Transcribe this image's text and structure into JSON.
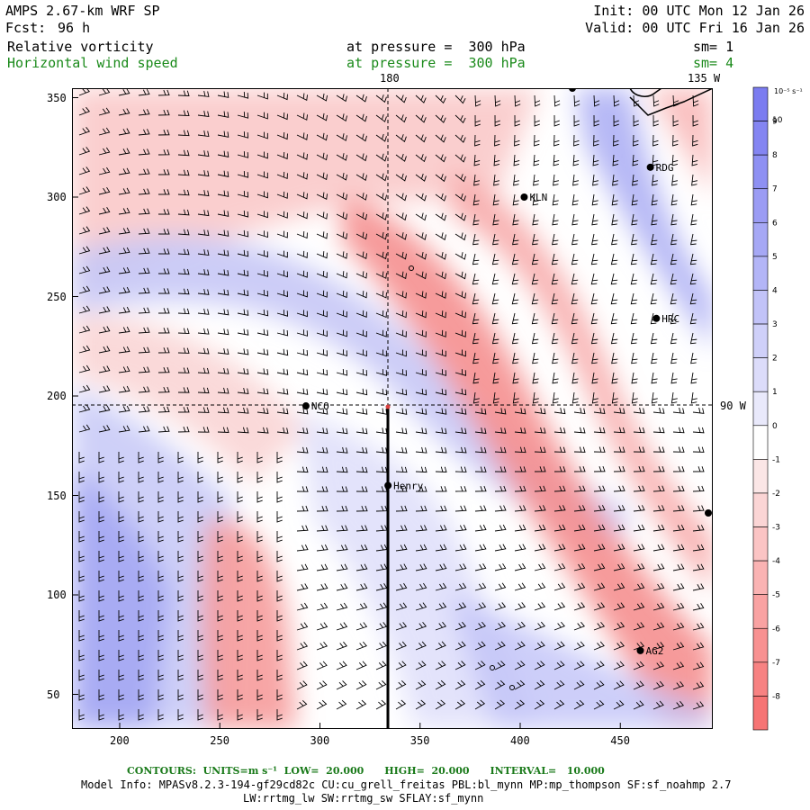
{
  "header": {
    "model": "AMPS 2.67-km WRF SP",
    "fcst_label": "Fcst:",
    "fcst_value": "96 h",
    "init": "Init: 00 UTC Mon 12 Jan 26",
    "valid": "Valid: 00 UTC Fri 16 Jan 26",
    "field1": "Relative vorticity",
    "field1_pressure": "at pressure =  300 hPa",
    "field1_sm": "sm= 1",
    "field2": "Horizontal wind speed",
    "field2_pressure": "at pressure =  300 hPa",
    "field2_sm": "sm= 4"
  },
  "map": {
    "x_ticks": [
      "200",
      "250",
      "300",
      "350",
      "400",
      "450"
    ],
    "y_ticks": [
      "350",
      "300",
      "250",
      "200",
      "150",
      "100",
      "50"
    ],
    "meridian_top_label": "180",
    "meridian_right_top_label": "135 W",
    "parallel_label": "90 W",
    "stations": [
      {
        "name": "RDG",
        "x": 465,
        "y": 315
      },
      {
        "name": "KLN",
        "x": 402,
        "y": 300
      },
      {
        "name": "HRC",
        "x": 468,
        "y": 239
      },
      {
        "name": "NCO",
        "x": 293,
        "y": 195
      },
      {
        "name": "Henry",
        "x": 334,
        "y": 155
      },
      {
        "name": "AG2",
        "x": 460,
        "y": 72
      }
    ]
  },
  "colorbar": {
    "unit_label": "10⁻⁵ s⁻¹",
    "labels": [
      "10",
      "9",
      "8",
      "7",
      "6",
      "5",
      "4",
      "3",
      "2",
      "1",
      "0",
      "-1",
      "-2",
      "-3",
      "-4",
      "-5",
      "-6",
      "-7",
      "-8"
    ],
    "colors": [
      "#7b7cf0",
      "#8485f2",
      "#8e90f3",
      "#9b9cf4",
      "#a6a8f5",
      "#b3b5f7",
      "#c2c3f8",
      "#cfd0f9",
      "#dcdcfa",
      "#e9e9fb",
      "#ffffff",
      "#fbe6e6",
      "#fbd5d5",
      "#fbc4c4",
      "#fab3b3",
      "#f9a2a2",
      "#f89191",
      "#f78282",
      "#f67474"
    ]
  },
  "footer": {
    "contours": "CONTOURS:  UNITS=m s⁻¹  LOW=  20.000      HIGH=  20.000      INTERVAL=   10.000",
    "model_info": "Model Info: MPASv8.2.3-194-gf29cd82c CU:cu_grell_freitas PBL:bl_mynn MP:mp_thompson SF:sf_noahmp 2.7",
    "model_info2": "LW:rrtmg_lw SW:rrtmg_sw SFLAY:sf_mynn"
  }
}
